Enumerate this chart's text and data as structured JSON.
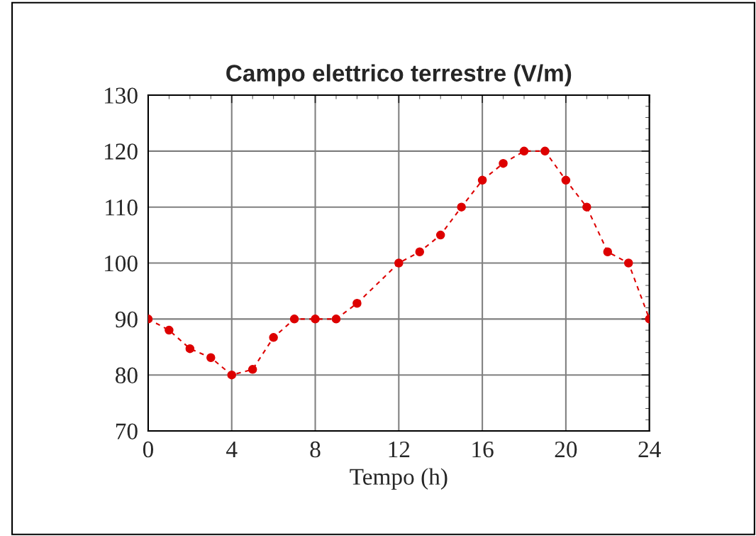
{
  "chart_data": {
    "type": "line",
    "title": "Campo elettrico terrestre (V/m)",
    "xlabel": "Tempo (h)",
    "x": [
      0,
      1,
      2,
      3,
      4,
      5,
      6,
      7,
      8,
      9,
      10,
      12,
      13,
      14,
      15,
      16,
      17,
      18,
      19,
      20,
      21,
      22,
      23,
      24
    ],
    "series": [
      {
        "color": "#dd0000",
        "values": [
          90,
          88,
          84.7,
          83.1,
          80,
          81,
          86.7,
          90,
          90,
          90,
          92.8,
          100,
          102,
          105,
          110,
          114.8,
          117.8,
          120,
          120,
          114.8,
          110,
          102,
          100,
          90
        ]
      }
    ],
    "xlim": [
      0,
      24
    ],
    "xticks": [
      0,
      4,
      8,
      12,
      16,
      20,
      24
    ],
    "ylim": [
      70,
      130
    ],
    "yticks": [
      70,
      80,
      90,
      100,
      110,
      120,
      130
    ],
    "grid": true,
    "marker": "circle",
    "line_style": "dashed"
  }
}
